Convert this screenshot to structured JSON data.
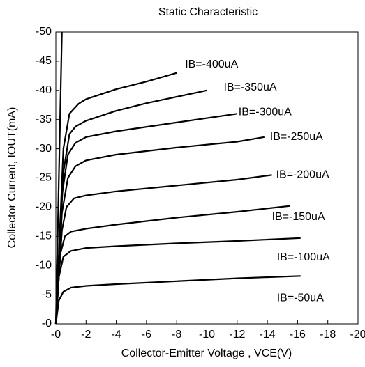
{
  "chart_data": {
    "type": "line",
    "title": "Static Characteristic",
    "x_label": "Collector-Emitter Voltage , VCE(V)",
    "y_label": "Collector Current, IOUT(mA)",
    "xlim": [
      0,
      -20
    ],
    "ylim": [
      0,
      -50
    ],
    "xticks": [
      {
        "value": 0,
        "label": "-0"
      },
      -2,
      -4,
      -6,
      -8,
      -10,
      -12,
      -14,
      -16,
      -18,
      -20
    ],
    "yticks": [
      {
        "value": 0,
        "label": "-0"
      },
      -5,
      -10,
      -15,
      -20,
      -25,
      -30,
      -35,
      -40,
      -45,
      -50
    ],
    "grid": false,
    "series": [
      {
        "color": "#000000",
        "x": [
          0,
          -0.4
        ],
        "values": [
          0,
          -50
        ]
      },
      {
        "name": "IB=-400uA",
        "color": "#000000",
        "x": [
          0,
          -0.5,
          -0.9,
          -1.5,
          -2,
          -4,
          -6,
          -8
        ],
        "values": [
          0,
          -30,
          -36,
          -37.7,
          -38.5,
          -40.2,
          -41.5,
          -43
        ]
      },
      {
        "name": "IB=-350uA",
        "color": "#000000",
        "x": [
          0,
          -0.5,
          -0.9,
          -1.3,
          -2,
          -4,
          -6,
          -10
        ],
        "values": [
          0,
          -26,
          -32.5,
          -33.8,
          -34.8,
          -36.5,
          -37.8,
          -40
        ]
      },
      {
        "name": "IB=-300uA",
        "color": "#000000",
        "x": [
          0,
          -0.4,
          -0.8,
          -1.3,
          -2,
          -4,
          -8,
          -12
        ],
        "values": [
          0,
          -22,
          -29,
          -31,
          -32,
          -33,
          -34.5,
          -36
        ]
      },
      {
        "name": "IB=-250uA",
        "color": "#000000",
        "x": [
          0,
          -0.4,
          -0.8,
          -1.3,
          -2,
          -4,
          -8,
          -12,
          -13.8
        ],
        "values": [
          0,
          -19,
          -25,
          -27,
          -28,
          -29,
          -30.2,
          -31.2,
          -32
        ]
      },
      {
        "name": "IB=-200uA",
        "color": "#000000",
        "x": [
          0,
          -0.4,
          -0.7,
          -1.2,
          -2,
          -4,
          -8,
          -12,
          -14.3
        ],
        "values": [
          0,
          -16,
          -20,
          -21.5,
          -22,
          -22.7,
          -23.7,
          -24.7,
          -25.5
        ]
      },
      {
        "name": "IB=-150uA",
        "color": "#000000",
        "x": [
          0,
          -0.3,
          -0.6,
          -1,
          -2,
          -4,
          -8,
          -12,
          -15.5
        ],
        "values": [
          0,
          -12,
          -15,
          -15.8,
          -16.3,
          -17,
          -18.2,
          -19.2,
          -20.2
        ]
      },
      {
        "name": "IB=-100uA",
        "color": "#000000",
        "x": [
          0,
          -0.2,
          -0.5,
          -1,
          -2,
          -4,
          -8,
          -12,
          -16.2
        ],
        "values": [
          0,
          -8,
          -11.5,
          -12.5,
          -13,
          -13.3,
          -13.8,
          -14.2,
          -14.7
        ]
      },
      {
        "name": "IB=-50uA",
        "color": "#000000",
        "x": [
          0,
          -0.2,
          -0.5,
          -1,
          -2,
          -4,
          -8,
          -12,
          -16.2
        ],
        "values": [
          0,
          -4,
          -5.5,
          -6.2,
          -6.5,
          -6.8,
          -7.3,
          -7.8,
          -8.2
        ]
      }
    ]
  }
}
